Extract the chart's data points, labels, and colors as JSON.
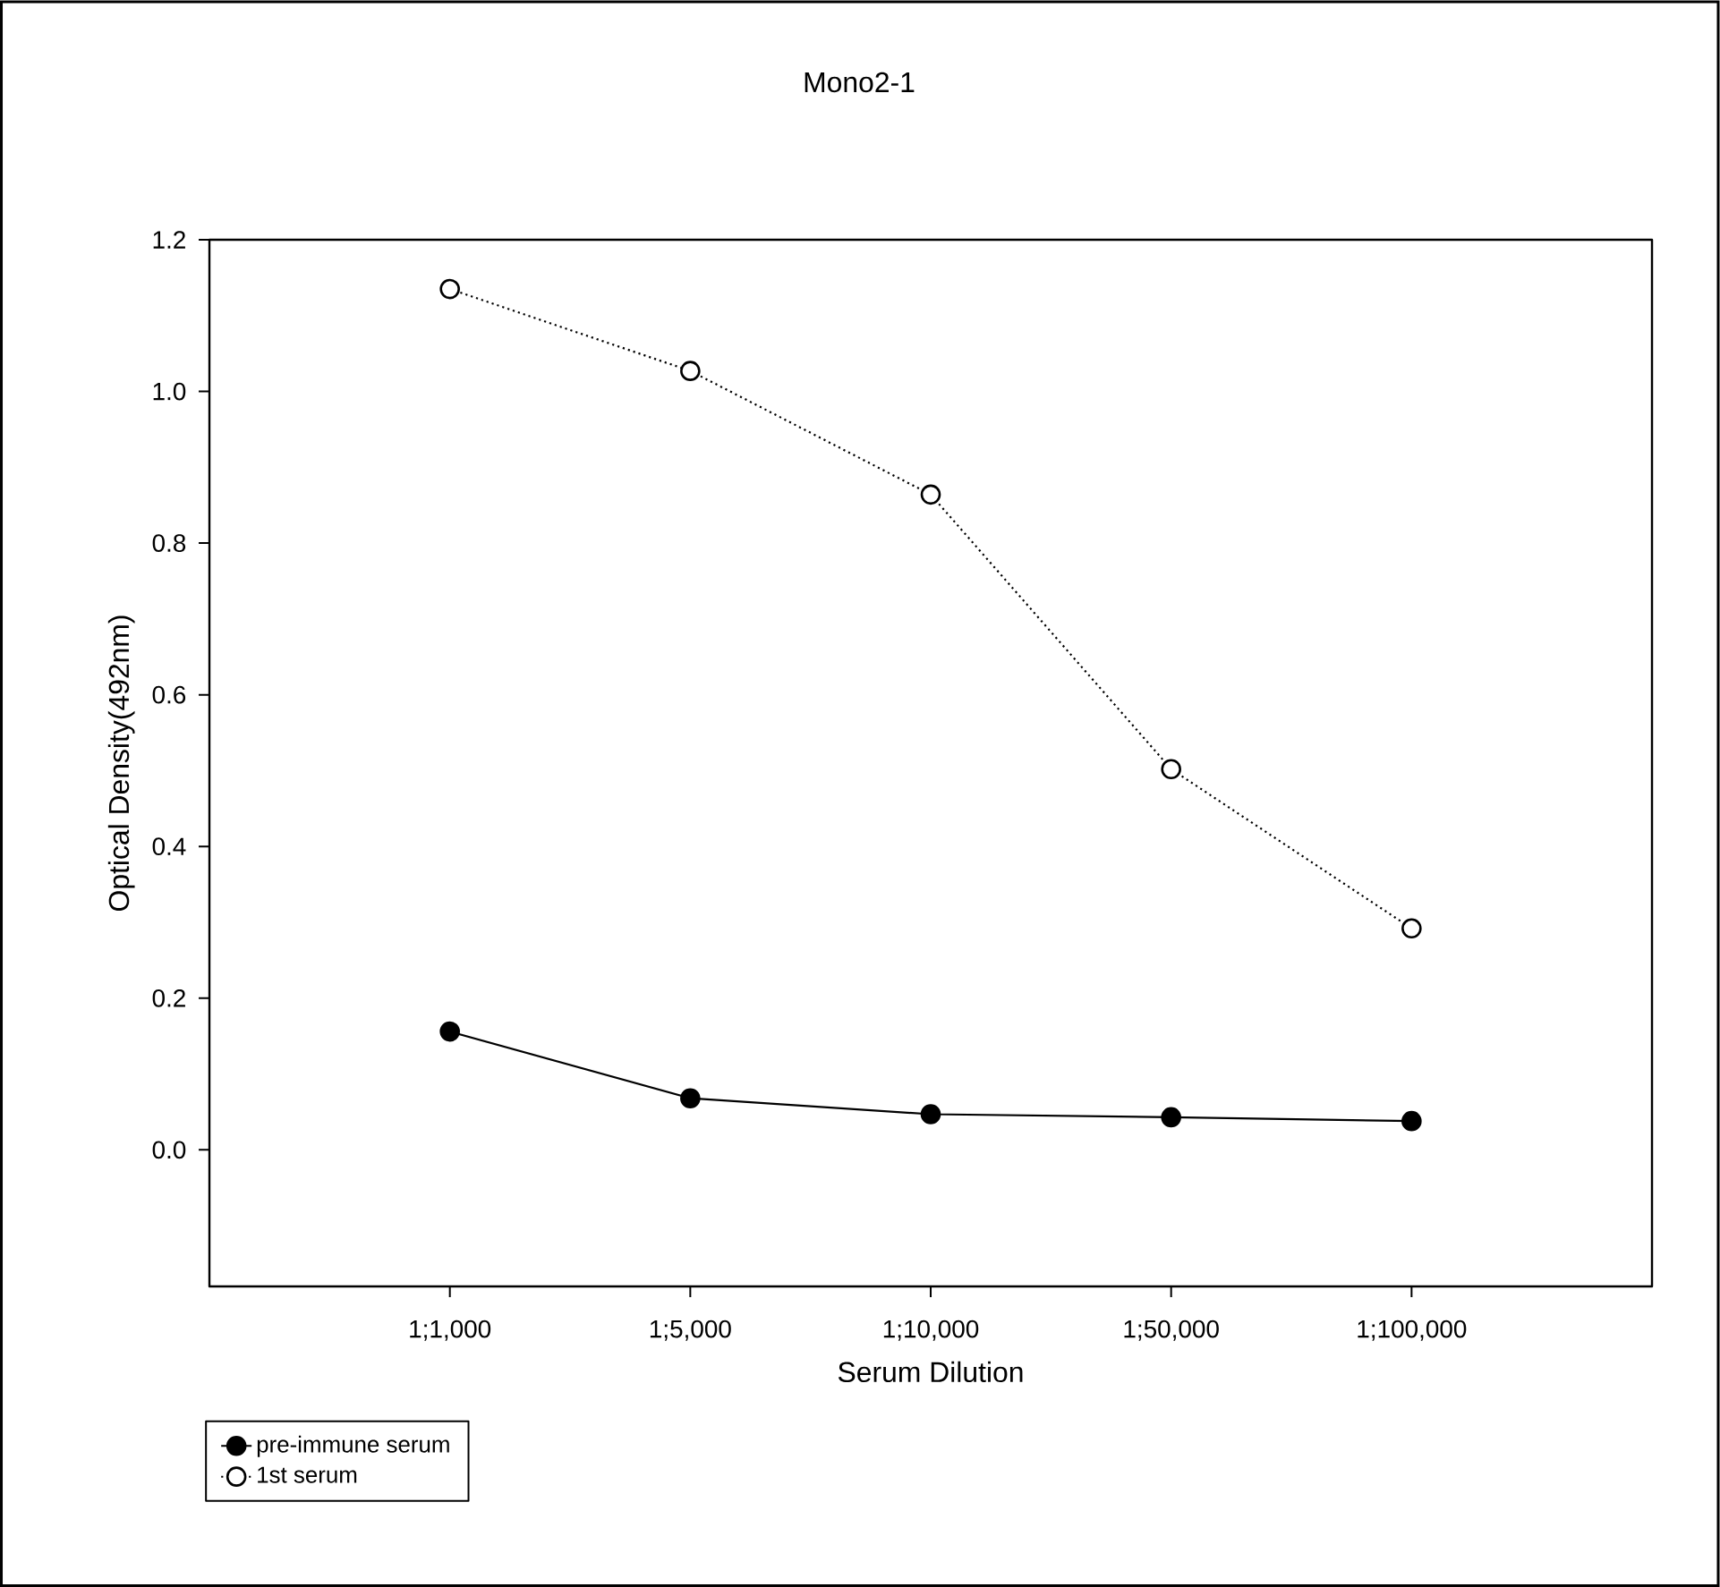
{
  "chart_data": {
    "type": "line",
    "title": "Mono2-1",
    "xlabel": "Serum Dilution",
    "ylabel": "Optical Density(492nm)",
    "categories": [
      "1;1,000",
      "1;5,000",
      "1;10,000",
      "1;50,000",
      "1;100,000"
    ],
    "series": [
      {
        "name": "pre-immune serum",
        "color": "#000000",
        "line_style": "solid",
        "values": [
          0.156,
          0.068,
          0.047,
          0.043,
          0.038
        ]
      },
      {
        "name": "1st serum",
        "color": "#000000",
        "line_style": "dotted",
        "values": [
          1.135,
          1.027,
          0.864,
          0.502,
          0.292
        ]
      }
    ],
    "ylim": [
      -0.18,
      1.2
    ],
    "yticks": [
      {
        "value": 0,
        "label": "0.0"
      },
      0.2,
      0.4,
      0.6,
      0.8,
      {
        "value": 1,
        "label": "1.0"
      },
      1.2
    ],
    "marker": "circle",
    "legend": "bottom left",
    "grid": false
  }
}
